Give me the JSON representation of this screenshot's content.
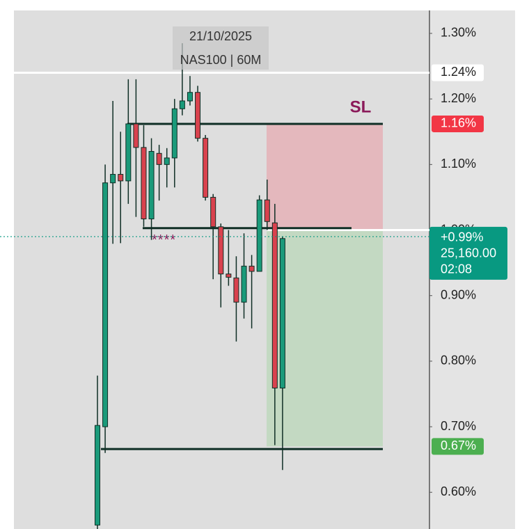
{
  "chart_data": {
    "type": "candlestick",
    "symbol": "NAS100 | 60M",
    "date": "21/10/2025",
    "up_color": "#1a9a7a",
    "down_color": "#d9424e",
    "ylim": [
      0.544,
      1.335
    ],
    "yticks": [
      {
        "value": 1.3,
        "label": "1.30%"
      },
      {
        "value": 1.2,
        "label": "1.20%"
      },
      {
        "value": 1.1,
        "label": "1.10%"
      },
      {
        "value": 1.0,
        "label": "1.00%"
      },
      {
        "value": 0.9,
        "label": "0.90%"
      },
      {
        "value": 0.8,
        "label": "0.80%"
      },
      {
        "value": 0.7,
        "label": "0.70%"
      },
      {
        "value": 0.6,
        "label": "0.60%"
      }
    ],
    "open": [
      0.55,
      0.7,
      1.072,
      1.085,
      1.075,
      1.162,
      1.126,
      1.017,
      1.117,
      1.1,
      1.11,
      1.185,
      1.197,
      1.21,
      1.14,
      1.05,
      1.005,
      0.933,
      0.927,
      0.89,
      0.945,
      0.937,
      1.046,
      1.011,
      0.759
    ],
    "high": [
      0.778,
      1.1,
      1.197,
      1.15,
      1.23,
      1.23,
      1.16,
      1.14,
      1.13,
      1.125,
      1.2,
      1.285,
      1.235,
      1.22,
      1.145,
      1.055,
      1.01,
      1.0,
      0.96,
      0.995,
      0.962,
      1.053,
      1.077,
      1.04,
      0.99
    ],
    "low": [
      0.54,
      0.66,
      0.979,
      0.98,
      1.04,
      1.02,
      1.005,
      0.985,
      1.045,
      1.065,
      1.065,
      1.175,
      1.19,
      1.135,
      1.045,
      0.925,
      0.882,
      0.915,
      0.83,
      0.865,
      0.85,
      0.937,
      1.0,
      0.672,
      0.634
    ],
    "close": [
      0.702,
      1.072,
      1.085,
      1.075,
      1.162,
      1.126,
      1.017,
      1.12,
      1.1,
      1.11,
      1.185,
      1.197,
      1.21,
      1.14,
      1.05,
      1.005,
      0.933,
      0.928,
      0.89,
      0.945,
      0.937,
      1.046,
      1.013,
      0.759,
      0.987
    ],
    "levels": [
      1.162,
      1.003,
      0.666
    ],
    "position": {
      "stop": 1.162,
      "entry": 1.0,
      "target": 0.67,
      "stop_label": "SL"
    },
    "marker": {
      "value": 0.99,
      "label": "****"
    },
    "price_labels": [
      {
        "value": 1.24,
        "label": "1.24%",
        "bg": "#ffffff",
        "fg": "#222222"
      },
      {
        "value": 1.162,
        "label": "1.16%",
        "bg": "#f23645",
        "fg": "#ffffff"
      },
      {
        "value": 0.67,
        "label": "0.67%",
        "bg": "#4caf50",
        "fg": "#ffffff"
      }
    ],
    "current": {
      "value": 0.99,
      "label": "+0.99%",
      "price": "25,160.00",
      "countdown": "02:08",
      "bg": "#089981"
    },
    "session_line": 1.24
  }
}
